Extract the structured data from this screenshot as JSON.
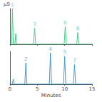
{
  "chart_data": [
    {
      "type": "line",
      "ylabel": "µS",
      "x": [
        0,
        0.3,
        0.45,
        0.6,
        0.9,
        1.05,
        1.2,
        4.3,
        4.5,
        4.7,
        9.9,
        10.1,
        10.3,
        12.2,
        12.4,
        12.6,
        15
      ],
      "series": [
        {
          "color": "#4cc98a",
          "values": [
            0,
            0,
            100,
            0,
            0,
            30,
            0,
            0,
            45,
            0,
            0,
            50,
            0,
            0,
            33,
            0,
            0
          ]
        }
      ],
      "annotations": [
        {
          "text": "1",
          "x": 0.45,
          "y": 100
        },
        {
          "text": "3",
          "x": 4.5,
          "y": 45
        },
        {
          "text": "6",
          "x": 10.1,
          "y": 50
        },
        {
          "text": "8",
          "x": 12.4,
          "y": 33
        }
      ],
      "xlim": [
        0,
        15
      ],
      "xticks": [
        0,
        5,
        10,
        15
      ],
      "ylim": [
        0,
        100
      ],
      "grid": false,
      "tick_labels": false
    },
    {
      "type": "line",
      "xlabel": "Minutes",
      "x": [
        0,
        0.4,
        0.6,
        0.8,
        2.7,
        2.9,
        3.1,
        7.2,
        7.4,
        7.6,
        9.8,
        10,
        10.2,
        11.6,
        11.8,
        12,
        15
      ],
      "series": [
        {
          "color": "#3a9ad9",
          "values": [
            0,
            0,
            15,
            0,
            0,
            65,
            0,
            0,
            95,
            0,
            0,
            85,
            0,
            0,
            60,
            0,
            0
          ]
        }
      ],
      "annotations": [
        {
          "text": "2",
          "x": 2.9,
          "y": 65
        },
        {
          "text": "4",
          "x": 7.4,
          "y": 95
        },
        {
          "text": "5",
          "x": 10,
          "y": 85
        },
        {
          "text": "7",
          "x": 11.8,
          "y": 60
        }
      ],
      "xlim": [
        0,
        15
      ],
      "xticks": [
        0,
        5,
        10,
        15
      ],
      "ylim": [
        0,
        100
      ],
      "grid": false,
      "tick_labels": "x"
    }
  ]
}
